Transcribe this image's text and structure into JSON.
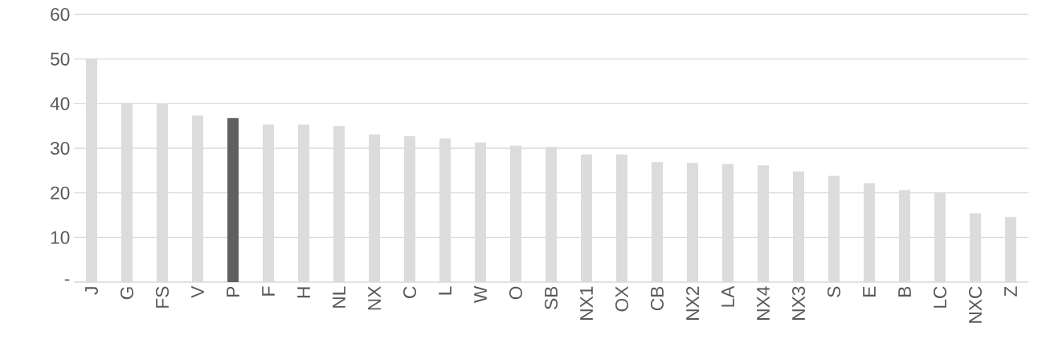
{
  "chart_data": {
    "type": "bar",
    "categories": [
      "J",
      "G",
      "FS",
      "V",
      "P",
      "F",
      "H",
      "NL",
      "NX",
      "C",
      "L",
      "W",
      "O",
      "SB",
      "NX1",
      "OX",
      "CB",
      "NX2",
      "LA",
      "NX4",
      "NX3",
      "S",
      "E",
      "B",
      "LC",
      "NXC",
      "Z"
    ],
    "values": [
      50,
      40.2,
      40,
      37.3,
      36.8,
      35.3,
      35.3,
      35,
      33.1,
      32.7,
      32.2,
      31.3,
      30.6,
      30.3,
      28.6,
      28.6,
      26.9,
      26.7,
      26.5,
      26.2,
      24.8,
      23.8,
      22.2,
      20.6,
      20,
      15.4,
      14.6
    ],
    "colors": [
      "#dcdcdc",
      "#dcdcdc",
      "#dcdcdc",
      "#dcdcdc",
      "#606060",
      "#dcdcdc",
      "#dcdcdc",
      "#dcdcdc",
      "#dcdcdc",
      "#dcdcdc",
      "#dcdcdc",
      "#dcdcdc",
      "#dcdcdc",
      "#dcdcdc",
      "#dcdcdc",
      "#dcdcdc",
      "#dcdcdc",
      "#dcdcdc",
      "#dcdcdc",
      "#dcdcdc",
      "#dcdcdc",
      "#dcdcdc",
      "#dcdcdc",
      "#dcdcdc",
      "#dcdcdc",
      "#dcdcdc",
      "#dcdcdc"
    ],
    "ylim": [
      0,
      60
    ],
    "yticks": [
      {
        "value": 0,
        "label": "-"
      },
      10,
      20,
      30,
      40,
      50,
      60
    ],
    "grid": "y"
  }
}
